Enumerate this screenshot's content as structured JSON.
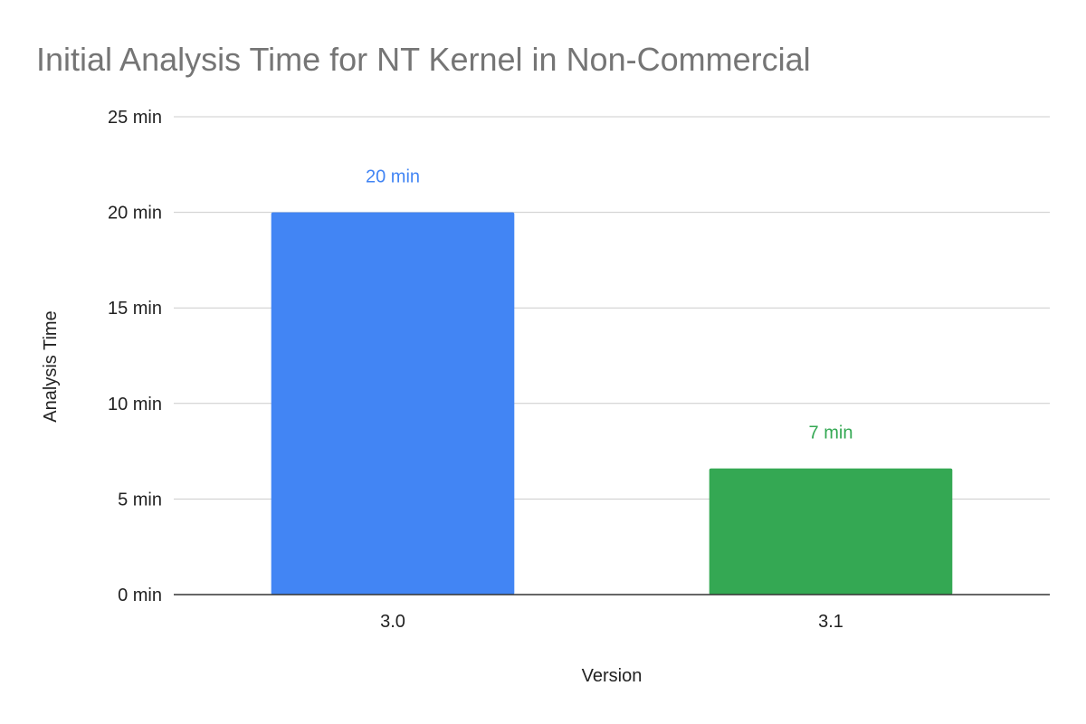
{
  "chart_data": {
    "type": "bar",
    "title": "Initial Analysis Time for NT Kernel in Non-Commercial",
    "xlabel": "Version",
    "ylabel": "Analysis Time",
    "categories": [
      "3.0",
      "3.1"
    ],
    "values": [
      20,
      6.6
    ],
    "data_labels": [
      "20 min",
      "7 min"
    ],
    "colors": [
      "#4285f4",
      "#34a853"
    ],
    "ylim": [
      0,
      25
    ],
    "yticks": [
      0,
      5,
      10,
      15,
      20,
      25
    ],
    "ytick_labels": [
      "0 min",
      "5 min",
      "10 min",
      "15 min",
      "20 min",
      "25 min"
    ],
    "grid": true,
    "legend": "none"
  }
}
